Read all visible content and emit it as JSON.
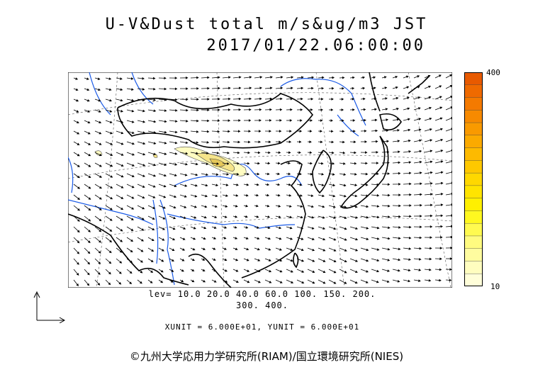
{
  "title": {
    "line1": "U-V&Dust total m/s&ug/m3 JST",
    "line2": "2017/01/22.06:00:00"
  },
  "colorbar": {
    "max_label": "400",
    "min_label": "10",
    "colors": [
      "#e85a00",
      "#ef6a00",
      "#f47a00",
      "#f78a00",
      "#f99a00",
      "#fbaa00",
      "#fdba00",
      "#fec800",
      "#ffd800",
      "#ffe400",
      "#fff000",
      "#fff820",
      "#fffa50",
      "#fffb80",
      "#fffc9f",
      "#fffdbf",
      "#fffed9"
    ]
  },
  "legend": {
    "levels_line1": "lev= 10.0 20.0 40.0 60.0 100. 150. 200.",
    "levels_line2": "300. 400.",
    "units": "XUNIT = 6.000E+01, YUNIT = 6.000E+01"
  },
  "map": {
    "coast_color": "#000000",
    "river_color": "#1a5ae6",
    "dust_colors": [
      "#fffcc2",
      "#f5e48a",
      "#e6c85a"
    ]
  },
  "copyright": "©九州大学応用力学研究所(RIAM)/国立環境研究所(NIES)"
}
